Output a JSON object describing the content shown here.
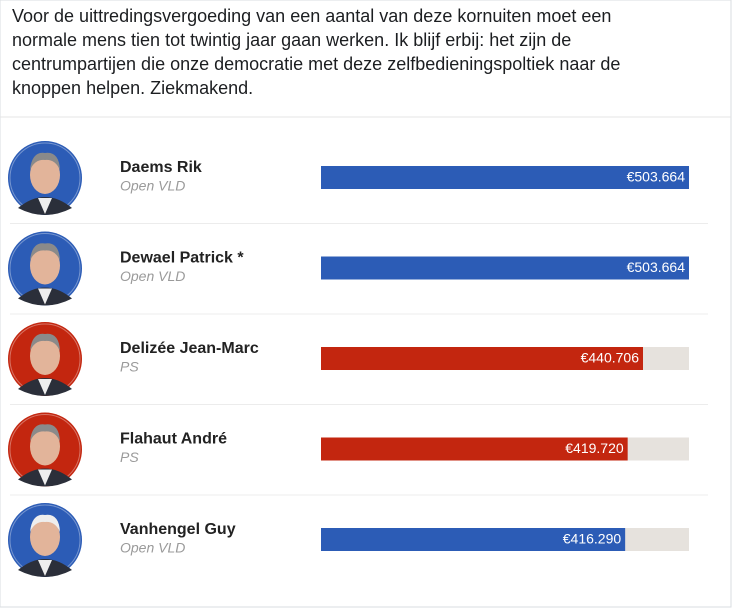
{
  "post": {
    "lines": [
      "Voor de uittredingsvergoeding van een aantal van deze kornuiten moet een",
      "normale mens tien tot twintig jaar gaan werken. Ik blijf erbij: het zijn de",
      "centrumpartijen die onze democratie met deze zelfbedieningspoltiek naar de",
      "knoppen helpen. Ziekmakend."
    ]
  },
  "chart_data": {
    "type": "bar",
    "orientation": "horizontal",
    "categories": [
      "Daems Rik",
      "Dewael Patrick *",
      "Delizée Jean-Marc",
      "Flahaut André",
      "Vanhengel Guy"
    ],
    "parties": [
      "Open VLD",
      "Open VLD",
      "PS",
      "PS",
      "Open VLD"
    ],
    "values": [
      503664,
      503664,
      440706,
      419720,
      416290
    ],
    "value_labels": [
      "€503.664",
      "€503.664",
      "€440.706",
      "€419.720",
      "€416.290"
    ],
    "colors": [
      "#2c5cb6",
      "#2c5cb6",
      "#c3260f",
      "#c3260f",
      "#2c5cb6"
    ],
    "xlim": [
      0,
      503664
    ]
  }
}
